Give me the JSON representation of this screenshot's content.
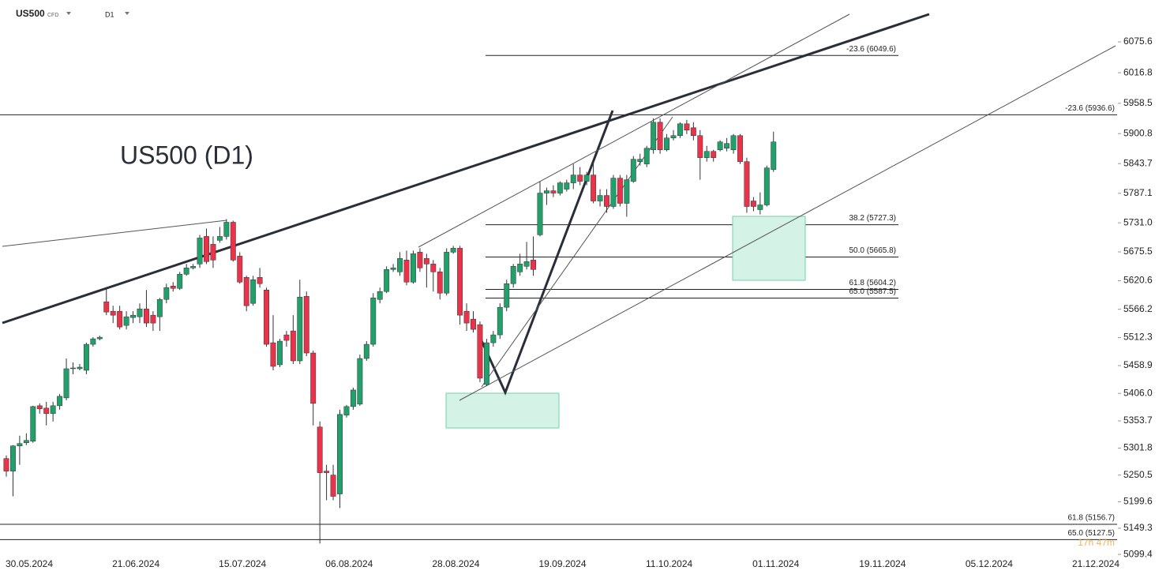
{
  "header": {
    "symbol": "US500",
    "symbol_type": "CFD",
    "timeframe": "D1"
  },
  "chart_data": {
    "type": "candlestick",
    "title": "US500 (D1)",
    "timer": "17h 47m",
    "x_labels": [
      "30.05.2024",
      "21.06.2024",
      "15.07.2024",
      "06.08.2024",
      "28.08.2024",
      "19.09.2024",
      "11.10.2024",
      "01.11.2024",
      "19.11.2024",
      "05.12.2024",
      "21.12.2024"
    ],
    "ylim": [
      5084.5,
      6155.3
    ],
    "yticks": [
      6075.6,
      6016.8,
      5958.5,
      5900.8,
      5843.7,
      5787.1,
      {
        "value": 5731,
        "label": "5731.0"
      },
      5675.5,
      5620.6,
      5566.2,
      5512.3,
      5458.9,
      {
        "value": 5406,
        "label": "5406.0"
      },
      5353.7,
      5301.8,
      5250.5,
      5199.6,
      5149.3,
      5099.4
    ],
    "levels": [
      {
        "value": 6049.6,
        "label": "-23.6 (6049.6)"
      },
      {
        "value": 5936.6,
        "label": "-23.6 (5936.6)"
      },
      {
        "value": 5727.3,
        "label": "38.2 (5727.3)"
      },
      {
        "value": 5665.8,
        "label": "50.0 (5665.8)"
      },
      {
        "value": 5604.2,
        "label": "61.8 (5604.2)"
      },
      {
        "value": 5587.5,
        "label": "65.0 (5587.5)"
      },
      {
        "value": 5156.7,
        "label": "61.8 (5156.7)"
      },
      {
        "value": 5127.5,
        "label": "65.0 (5127.5)"
      }
    ],
    "up_color": "#22a06b",
    "down_color": "#e8334a",
    "candles": [
      [
        5282,
        5288,
        5247.5,
        5258
      ],
      [
        5258,
        5307.5,
        5210,
        5306
      ],
      [
        5306,
        5325.5,
        5270,
        5310.5
      ],
      [
        5312,
        5330,
        5307.5,
        5316.5
      ],
      [
        5315,
        5382.5,
        5312,
        5381
      ],
      [
        5382.5,
        5387,
        5367.5,
        5376.5
      ],
      [
        5378,
        5390,
        5345,
        5367.5
      ],
      [
        5367.5,
        5390,
        5352.5,
        5382.5
      ],
      [
        5382.5,
        5405,
        5375,
        5400.5
      ],
      [
        5397.5,
        5472.5,
        5393,
        5453
      ],
      [
        5453,
        5465,
        5442.5,
        5454.5
      ],
      [
        5453,
        5462,
        5450,
        5456
      ],
      [
        5450,
        5502.5,
        5442.5,
        5499.5
      ],
      [
        5499.5,
        5513,
        5495,
        5510
      ],
      [
        5510,
        5516,
        5507,
        5513
      ],
      [
        5580.5,
        5607.5,
        5555,
        5561
      ],
      [
        5562.5,
        5573,
        5540,
        5555
      ],
      [
        5562.5,
        5573,
        5528,
        5532.5
      ],
      [
        5535.5,
        5562.5,
        5528,
        5552
      ],
      [
        5550.5,
        5562.5,
        5540,
        5555
      ],
      [
        5552,
        5577.5,
        5540,
        5567
      ],
      [
        5567,
        5603,
        5532.5,
        5540
      ],
      [
        5555,
        5562.5,
        5525,
        5540
      ],
      [
        5552,
        5588,
        5525,
        5585
      ],
      [
        5585,
        5615,
        5577.5,
        5607.5
      ],
      [
        5610.5,
        5618,
        5600,
        5606
      ],
      [
        5606,
        5637.5,
        5603,
        5633
      ],
      [
        5633,
        5652.5,
        5630,
        5645
      ],
      [
        5645,
        5652.5,
        5642,
        5648
      ],
      [
        5652.5,
        5708,
        5645,
        5702
      ],
      [
        5705,
        5720,
        5652.5,
        5657
      ],
      [
        5690,
        5705,
        5645,
        5660
      ],
      [
        5697.5,
        5723,
        5693,
        5705
      ],
      [
        5705,
        5738,
        5699,
        5732
      ],
      [
        5732,
        5735,
        5657,
        5660
      ],
      [
        5667.5,
        5675,
        5615,
        5618
      ],
      [
        5627,
        5630,
        5562.5,
        5573
      ],
      [
        5577.5,
        5630,
        5573,
        5622.5
      ],
      [
        5627,
        5645,
        5607.5,
        5615
      ],
      [
        5603,
        5607.5,
        5495,
        5499.5
      ],
      [
        5502.5,
        5555,
        5450,
        5457.5
      ],
      [
        5460.5,
        5510,
        5456,
        5505.5
      ],
      [
        5517.5,
        5525,
        5495,
        5507
      ],
      [
        5525,
        5555,
        5462,
        5468
      ],
      [
        5468,
        5622.5,
        5462,
        5589.5
      ],
      [
        5591,
        5600,
        5477,
        5483
      ],
      [
        5483,
        5487.5,
        5345,
        5387
      ],
      [
        5342,
        5352.5,
        5120,
        5255
      ],
      [
        5258,
        5270,
        5202.5,
        5255
      ],
      [
        5250.5,
        5270,
        5202.5,
        5210
      ],
      [
        5214.5,
        5375,
        5187.5,
        5366
      ],
      [
        5364.5,
        5384,
        5360,
        5381
      ],
      [
        5381,
        5417,
        5375,
        5412.5
      ],
      [
        5385.5,
        5480,
        5382.5,
        5472.5
      ],
      [
        5472.5,
        5505.5,
        5468,
        5499.5
      ],
      [
        5499.5,
        5597,
        5495,
        5588
      ],
      [
        5585,
        5607.5,
        5577.5,
        5600
      ],
      [
        5600,
        5648,
        5597,
        5642
      ],
      [
        5642,
        5652.5,
        5637.5,
        5645
      ],
      [
        5637.5,
        5675,
        5630,
        5663
      ],
      [
        5660,
        5678,
        5612,
        5618
      ],
      [
        5618,
        5678,
        5615,
        5672
      ],
      [
        5675,
        5682.5,
        5637.5,
        5645
      ],
      [
        5663,
        5672,
        5607.5,
        5652.5
      ],
      [
        5652.5,
        5660,
        5600,
        5637.5
      ],
      [
        5637.5,
        5645,
        5585,
        5597
      ],
      [
        5597,
        5682.5,
        5592.5,
        5675
      ],
      [
        5675,
        5687,
        5672,
        5682.5
      ],
      [
        5682.5,
        5687,
        5537,
        5555
      ],
      [
        5562.5,
        5577.5,
        5525,
        5540
      ],
      [
        5547.5,
        5562.5,
        5522,
        5528
      ],
      [
        5537,
        5543,
        5427.5,
        5435
      ],
      [
        5423,
        5510,
        5420,
        5502.5
      ],
      [
        5502.5,
        5525,
        5495,
        5517.5
      ],
      [
        5517.5,
        5577.5,
        5510,
        5570
      ],
      [
        5570,
        5622.5,
        5562.5,
        5615
      ],
      [
        5615,
        5652.5,
        5607.5,
        5648
      ],
      [
        5637.5,
        5672,
        5630,
        5652.5
      ],
      [
        5648,
        5694.5,
        5642,
        5657
      ],
      [
        5660,
        5705,
        5630,
        5642
      ],
      [
        5708,
        5810,
        5705,
        5787.5
      ],
      [
        5787.5,
        5798,
        5765,
        5792
      ],
      [
        5792,
        5802.5,
        5780,
        5787.5
      ],
      [
        5787.5,
        5810,
        5783,
        5807
      ],
      [
        5795,
        5813,
        5790.5,
        5807
      ],
      [
        5807,
        5843,
        5795,
        5822
      ],
      [
        5822,
        5837,
        5802.5,
        5810
      ],
      [
        5810,
        5828,
        5802.5,
        5822
      ],
      [
        5822,
        5847.5,
        5768,
        5772.5
      ],
      [
        5772.5,
        5795,
        5762,
        5783
      ],
      [
        5783,
        5795,
        5750,
        5762
      ],
      [
        5762,
        5822,
        5757.5,
        5816
      ],
      [
        5816,
        5822,
        5762,
        5768
      ],
      [
        5768,
        5822,
        5742.5,
        5813
      ],
      [
        5810,
        5858,
        5807,
        5852
      ],
      [
        5847.5,
        5862.5,
        5840,
        5852
      ],
      [
        5843,
        5877.5,
        5837,
        5873
      ],
      [
        5870,
        5930,
        5862.5,
        5922.5
      ],
      [
        5922.5,
        5930,
        5862.5,
        5870
      ],
      [
        5870,
        5900,
        5867,
        5892.5
      ],
      [
        5892.5,
        5907.5,
        5888,
        5897
      ],
      [
        5897,
        5922.5,
        5892.5,
        5919.5
      ],
      [
        5919.5,
        5927,
        5900,
        5907.5
      ],
      [
        5912,
        5922.5,
        5888,
        5897
      ],
      [
        5897,
        5907.5,
        5813,
        5855
      ],
      [
        5855,
        5877.5,
        5847.5,
        5867
      ],
      [
        5867,
        5870,
        5847.5,
        5855
      ],
      [
        5870,
        5888,
        5867,
        5885
      ],
      [
        5873,
        5892.5,
        5867,
        5882
      ],
      [
        5870,
        5900,
        5862.5,
        5897
      ],
      [
        5897,
        5900,
        5843,
        5847.5
      ],
      [
        5847.5,
        5855,
        5750,
        5762
      ],
      [
        5772.5,
        5780,
        5753,
        5762
      ],
      [
        5756,
        5789,
        5747,
        5765
      ],
      [
        5765,
        5840,
        5762,
        5835.5
      ],
      [
        5832.5,
        5904.5,
        5828,
        5885
      ]
    ]
  }
}
